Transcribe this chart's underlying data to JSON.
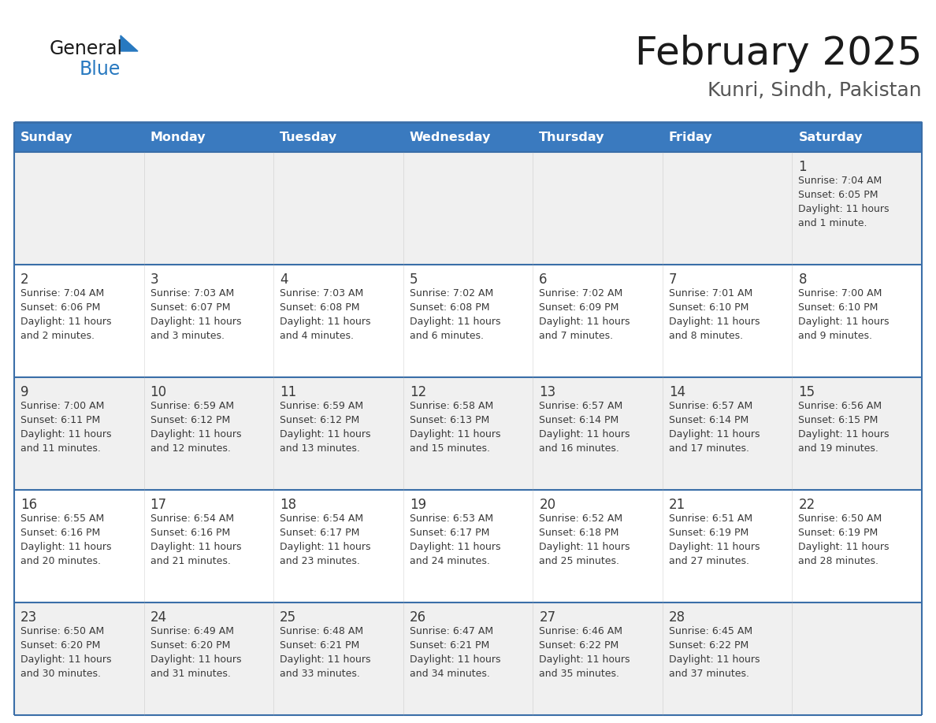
{
  "title": "February 2025",
  "subtitle": "Kunri, Sindh, Pakistan",
  "header_color": "#3a7abf",
  "header_text_color": "#ffffff",
  "cell_bg_light": "#f0f0f0",
  "cell_bg_white": "#ffffff",
  "day_number_color": "#3a3a3a",
  "info_text_color": "#3a3a3a",
  "separator_color": "#3a6ea8",
  "days_of_week": [
    "Sunday",
    "Monday",
    "Tuesday",
    "Wednesday",
    "Thursday",
    "Friday",
    "Saturday"
  ],
  "logo_text_general": "General",
  "logo_text_blue": "Blue",
  "logo_color_general": "#1a1a1a",
  "logo_color_blue": "#2879c0",
  "logo_triangle_color": "#2879c0",
  "calendar_data": [
    [
      null,
      null,
      null,
      null,
      null,
      null,
      {
        "day": "1",
        "sunrise": "7:04 AM",
        "sunset": "6:05 PM",
        "daylight": "11 hours",
        "daylight2": "and 1 minute."
      }
    ],
    [
      {
        "day": "2",
        "sunrise": "7:04 AM",
        "sunset": "6:06 PM",
        "daylight": "11 hours",
        "daylight2": "and 2 minutes."
      },
      {
        "day": "3",
        "sunrise": "7:03 AM",
        "sunset": "6:07 PM",
        "daylight": "11 hours",
        "daylight2": "and 3 minutes."
      },
      {
        "day": "4",
        "sunrise": "7:03 AM",
        "sunset": "6:08 PM",
        "daylight": "11 hours",
        "daylight2": "and 4 minutes."
      },
      {
        "day": "5",
        "sunrise": "7:02 AM",
        "sunset": "6:08 PM",
        "daylight": "11 hours",
        "daylight2": "and 6 minutes."
      },
      {
        "day": "6",
        "sunrise": "7:02 AM",
        "sunset": "6:09 PM",
        "daylight": "11 hours",
        "daylight2": "and 7 minutes."
      },
      {
        "day": "7",
        "sunrise": "7:01 AM",
        "sunset": "6:10 PM",
        "daylight": "11 hours",
        "daylight2": "and 8 minutes."
      },
      {
        "day": "8",
        "sunrise": "7:00 AM",
        "sunset": "6:10 PM",
        "daylight": "11 hours",
        "daylight2": "and 9 minutes."
      }
    ],
    [
      {
        "day": "9",
        "sunrise": "7:00 AM",
        "sunset": "6:11 PM",
        "daylight": "11 hours",
        "daylight2": "and 11 minutes."
      },
      {
        "day": "10",
        "sunrise": "6:59 AM",
        "sunset": "6:12 PM",
        "daylight": "11 hours",
        "daylight2": "and 12 minutes."
      },
      {
        "day": "11",
        "sunrise": "6:59 AM",
        "sunset": "6:12 PM",
        "daylight": "11 hours",
        "daylight2": "and 13 minutes."
      },
      {
        "day": "12",
        "sunrise": "6:58 AM",
        "sunset": "6:13 PM",
        "daylight": "11 hours",
        "daylight2": "and 15 minutes."
      },
      {
        "day": "13",
        "sunrise": "6:57 AM",
        "sunset": "6:14 PM",
        "daylight": "11 hours",
        "daylight2": "and 16 minutes."
      },
      {
        "day": "14",
        "sunrise": "6:57 AM",
        "sunset": "6:14 PM",
        "daylight": "11 hours",
        "daylight2": "and 17 minutes."
      },
      {
        "day": "15",
        "sunrise": "6:56 AM",
        "sunset": "6:15 PM",
        "daylight": "11 hours",
        "daylight2": "and 19 minutes."
      }
    ],
    [
      {
        "day": "16",
        "sunrise": "6:55 AM",
        "sunset": "6:16 PM",
        "daylight": "11 hours",
        "daylight2": "and 20 minutes."
      },
      {
        "day": "17",
        "sunrise": "6:54 AM",
        "sunset": "6:16 PM",
        "daylight": "11 hours",
        "daylight2": "and 21 minutes."
      },
      {
        "day": "18",
        "sunrise": "6:54 AM",
        "sunset": "6:17 PM",
        "daylight": "11 hours",
        "daylight2": "and 23 minutes."
      },
      {
        "day": "19",
        "sunrise": "6:53 AM",
        "sunset": "6:17 PM",
        "daylight": "11 hours",
        "daylight2": "and 24 minutes."
      },
      {
        "day": "20",
        "sunrise": "6:52 AM",
        "sunset": "6:18 PM",
        "daylight": "11 hours",
        "daylight2": "and 25 minutes."
      },
      {
        "day": "21",
        "sunrise": "6:51 AM",
        "sunset": "6:19 PM",
        "daylight": "11 hours",
        "daylight2": "and 27 minutes."
      },
      {
        "day": "22",
        "sunrise": "6:50 AM",
        "sunset": "6:19 PM",
        "daylight": "11 hours",
        "daylight2": "and 28 minutes."
      }
    ],
    [
      {
        "day": "23",
        "sunrise": "6:50 AM",
        "sunset": "6:20 PM",
        "daylight": "11 hours",
        "daylight2": "and 30 minutes."
      },
      {
        "day": "24",
        "sunrise": "6:49 AM",
        "sunset": "6:20 PM",
        "daylight": "11 hours",
        "daylight2": "and 31 minutes."
      },
      {
        "day": "25",
        "sunrise": "6:48 AM",
        "sunset": "6:21 PM",
        "daylight": "11 hours",
        "daylight2": "and 33 minutes."
      },
      {
        "day": "26",
        "sunrise": "6:47 AM",
        "sunset": "6:21 PM",
        "daylight": "11 hours",
        "daylight2": "and 34 minutes."
      },
      {
        "day": "27",
        "sunrise": "6:46 AM",
        "sunset": "6:22 PM",
        "daylight": "11 hours",
        "daylight2": "and 35 minutes."
      },
      {
        "day": "28",
        "sunrise": "6:45 AM",
        "sunset": "6:22 PM",
        "daylight": "11 hours",
        "daylight2": "and 37 minutes."
      },
      null
    ]
  ]
}
